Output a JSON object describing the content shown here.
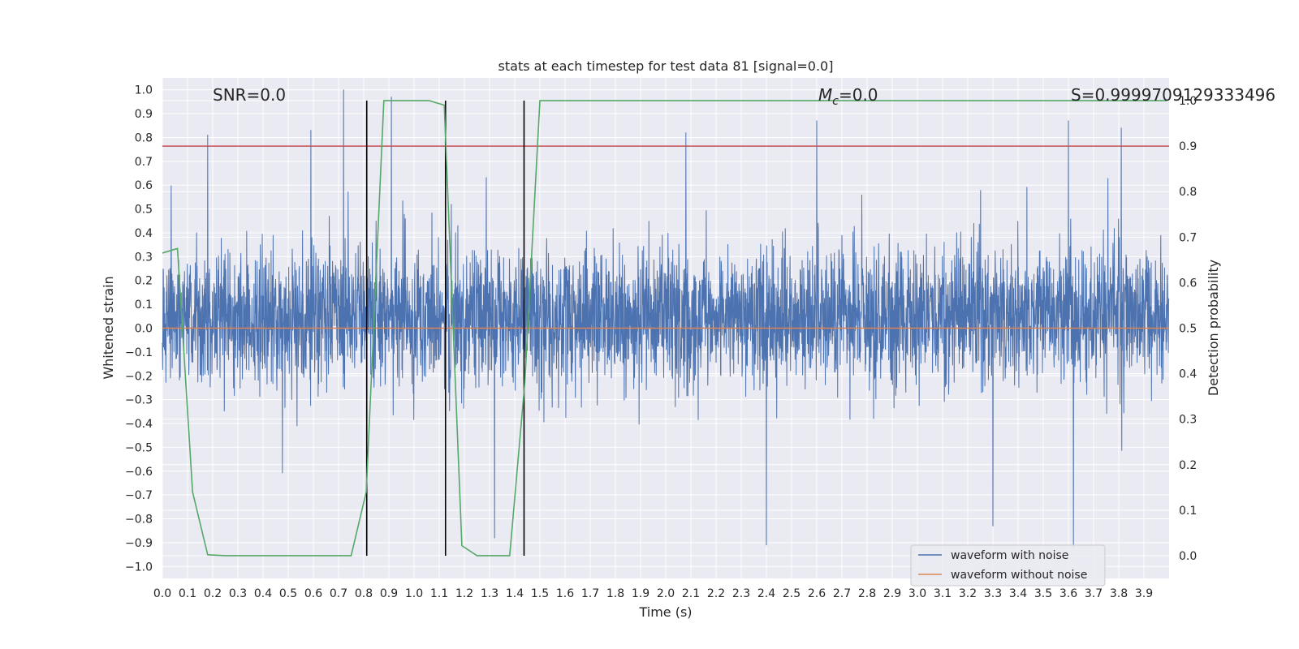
{
  "chart_data": {
    "type": "line",
    "title": "stats at each timestep for test data 81 [signal=0.0]",
    "xlabel": "Time (s)",
    "ylabel": "Whitened strain",
    "y2label": "Detection probability",
    "xlim": [
      0.0,
      4.0
    ],
    "ylim": [
      -1.05,
      1.05
    ],
    "y2lim": [
      -0.05,
      1.05
    ],
    "x_ticks": [
      "0.0",
      "0.1",
      "0.2",
      "0.3",
      "0.4",
      "0.5",
      "0.6",
      "0.7",
      "0.8",
      "0.9",
      "1.0",
      "1.1",
      "1.2",
      "1.3",
      "1.4",
      "1.5",
      "1.6",
      "1.7",
      "1.8",
      "1.9",
      "2.0",
      "2.1",
      "2.2",
      "2.3",
      "2.4",
      "2.5",
      "2.6",
      "2.7",
      "2.8",
      "2.9",
      "3.0",
      "3.1",
      "3.2",
      "3.3",
      "3.4",
      "3.5",
      "3.6",
      "3.7",
      "3.8",
      "3.9"
    ],
    "y_ticks": [
      "1.0",
      "0.9",
      "0.8",
      "0.7",
      "0.6",
      "0.5",
      "0.4",
      "0.3",
      "0.2",
      "0.1",
      "0.0",
      "−0.1",
      "−0.2",
      "−0.3",
      "−0.4",
      "−0.5",
      "−0.6",
      "−0.7",
      "−0.8",
      "−0.9",
      "−1.0"
    ],
    "y2_ticks": [
      "1.0",
      "0.9",
      "0.8",
      "0.7",
      "0.6",
      "0.5",
      "0.4",
      "0.3",
      "0.2",
      "0.1",
      "0.0"
    ],
    "annotations": {
      "snr": "SNR=0.0",
      "mc": "M",
      "mc_sub": "c",
      "mc_val": "=0.0",
      "s": "S=0.9999709129333496"
    },
    "series": [
      {
        "name": "waveform with noise",
        "axis": "left",
        "color": "#4c72b0",
        "description": "noisy whitened strain, amplitude roughly within [-0.9, 1.0]",
        "seed": 81,
        "peaks": [
          [
            0.18,
            0.81
          ],
          [
            0.72,
            1.0
          ],
          [
            0.91,
            0.97
          ],
          [
            2.6,
            0.87
          ],
          [
            3.6,
            0.87
          ],
          [
            2.08,
            0.82
          ],
          [
            0.59,
            0.83
          ],
          [
            3.81,
            0.84
          ],
          [
            2.4,
            -0.91
          ],
          [
            3.62,
            -0.93
          ],
          [
            1.32,
            -0.88
          ],
          [
            3.3,
            -0.83
          ]
        ]
      },
      {
        "name": "waveform without noise",
        "axis": "left",
        "color": "#dd8452",
        "x": [
          0.0,
          4.0
        ],
        "y": [
          0.0,
          0.0
        ]
      },
      {
        "name": "detection probability",
        "axis": "right",
        "color": "#55a868",
        "x": [
          0.0,
          0.06,
          0.12,
          0.18,
          0.25,
          0.31,
          0.38,
          0.44,
          0.5,
          0.56,
          0.62,
          0.69,
          0.75,
          0.81,
          0.88,
          0.94,
          1.0,
          1.06,
          1.12,
          1.19,
          1.25,
          1.31,
          1.38,
          1.44,
          1.5,
          3.99
        ],
        "y": [
          0.665,
          0.675,
          0.14,
          0.002,
          0.0,
          0.0,
          0.0,
          0.0,
          0.0,
          0.0,
          0.0,
          0.0,
          0.0,
          0.14,
          1.0,
          1.0,
          1.0,
          1.0,
          0.99,
          0.022,
          0.0,
          0.0,
          0.0,
          0.38,
          1.0,
          1.0
        ]
      },
      {
        "name": "threshold",
        "axis": "right",
        "color": "#c44e52",
        "x": [
          0.0,
          4.0
        ],
        "y": [
          0.9,
          0.9
        ]
      }
    ],
    "vlines": [
      {
        "x": 0.812,
        "y": [
          0.0,
          1.0
        ],
        "color": "#000000"
      },
      {
        "x": 1.125,
        "y": [
          0.0,
          1.0
        ],
        "color": "#000000"
      },
      {
        "x": 1.437,
        "y": [
          0.0,
          1.0
        ],
        "color": "#000000"
      }
    ],
    "legend": {
      "position": "lower-right",
      "entries": [
        {
          "label": "waveform with noise",
          "color": "#4c72b0"
        },
        {
          "label": "waveform without noise",
          "color": "#dd8452"
        }
      ]
    },
    "colors": {
      "background": "#eaeaf2",
      "grid": "#ffffff"
    }
  }
}
